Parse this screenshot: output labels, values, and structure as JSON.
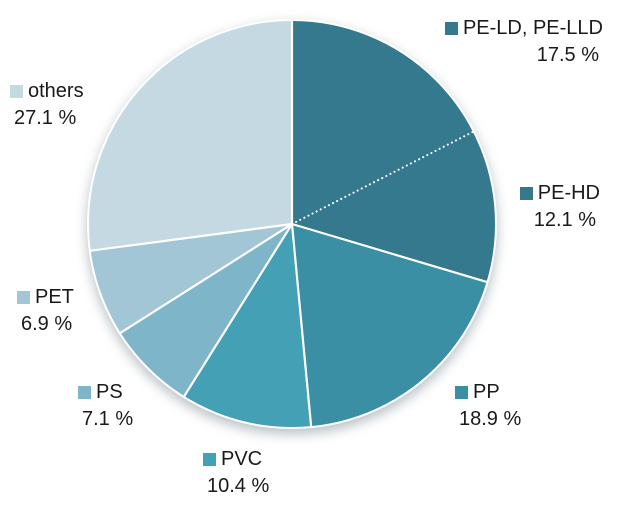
{
  "chart_data": {
    "type": "pie",
    "title": "",
    "unit": "%",
    "start_angle_deg": 0,
    "direction": "clockwise",
    "background": "#ffffff",
    "legend_position": "labels-around-pie",
    "slices": [
      {
        "name": "PE-LD, PE-LLD",
        "value": 17.5,
        "percent_label": "17.5 %",
        "color": "#35798f"
      },
      {
        "name": "PE-HD",
        "value": 12.1,
        "percent_label": "12.1 %",
        "color": "#35798f"
      },
      {
        "name": "PP",
        "value": 18.9,
        "percent_label": "18.9 %",
        "color": "#3a8fa5"
      },
      {
        "name": "PVC",
        "value": 10.4,
        "percent_label": "10.4 %",
        "color": "#43a0b5"
      },
      {
        "name": "PS",
        "value": 7.1,
        "percent_label": "7.1 %",
        "color": "#7eb5c9"
      },
      {
        "name": "PET",
        "value": 6.9,
        "percent_label": "6.9 %",
        "color": "#a3c6d6"
      },
      {
        "name": "others",
        "value": 27.1,
        "percent_label": "27.1 %",
        "color": "#c4d9e2"
      }
    ],
    "separator": {
      "color": "#ffffff",
      "dotted_boundary_before": "PE-HD"
    }
  }
}
